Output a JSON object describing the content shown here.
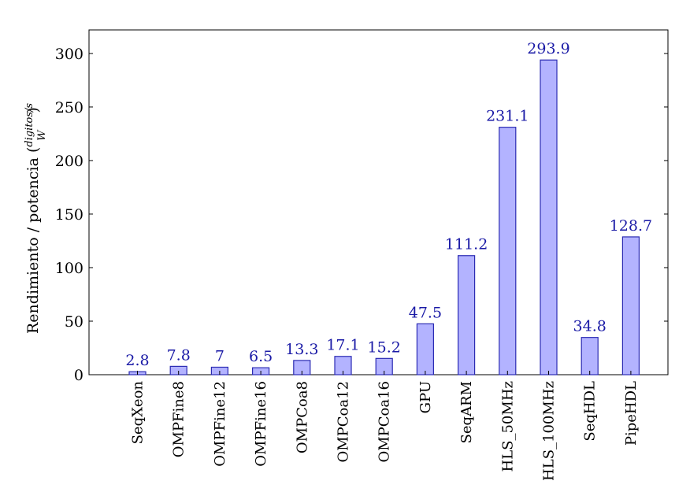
{
  "chart_data": {
    "type": "bar",
    "title": "",
    "xlabel": "",
    "ylabel": "Rendimiento / potencia (",
    "ylabel_fraction": {
      "numerator": "digitos/s",
      "denominator": "W",
      "close": ")"
    },
    "categories": [
      "SeqXeon",
      "OMPFine8",
      "OMPFine12",
      "OMPFine16",
      "OMPCoa8",
      "OMPCoa12",
      "OMPCoa16",
      "GPU",
      "SeqARM",
      "HLS_50MHz",
      "HLS_100MHz",
      "SeqHDL",
      "PipeHDL"
    ],
    "values": [
      2.8,
      7.8,
      7,
      6.5,
      13.3,
      17.1,
      15.2,
      47.5,
      111.2,
      231.1,
      293.9,
      34.8,
      128.7
    ],
    "value_labels": [
      "2.8",
      "7.8",
      "7",
      "6.5",
      "13.3",
      "17.1",
      "15.2",
      "47.5",
      "111.2",
      "231.1",
      "293.9",
      "34.8",
      "128.7"
    ],
    "ylim": [
      0,
      322
    ],
    "yticks": [
      0,
      50,
      100,
      150,
      200,
      250,
      300
    ],
    "grid": false,
    "legend": "none",
    "colors": {
      "bar_fill": "#b3b3ff",
      "bar_stroke": "#2b2bb3",
      "data_label": "#1a1aa6"
    }
  }
}
